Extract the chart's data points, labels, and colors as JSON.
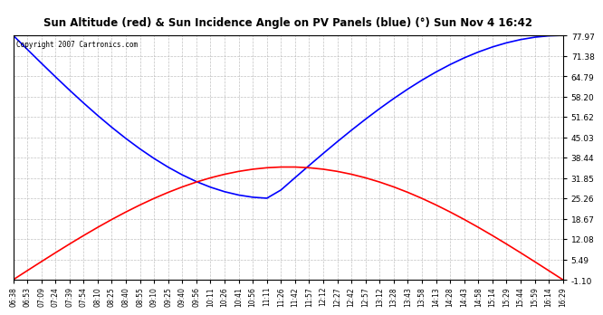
{
  "title": "Sun Altitude (red) & Sun Incidence Angle on PV Panels (blue) (°) Sun Nov 4 16:42",
  "copyright_text": "Copyright 2007 Cartronics.com",
  "y_ticks": [
    -1.1,
    5.49,
    12.08,
    18.67,
    25.26,
    31.85,
    38.44,
    45.03,
    51.62,
    58.2,
    64.79,
    71.38,
    77.97
  ],
  "y_min": -1.1,
  "y_max": 77.97,
  "x_labels": [
    "06:38",
    "06:53",
    "07:09",
    "07:24",
    "07:39",
    "07:54",
    "08:10",
    "08:25",
    "08:40",
    "08:55",
    "09:10",
    "09:25",
    "09:40",
    "09:56",
    "10:11",
    "10:26",
    "10:41",
    "10:56",
    "11:11",
    "11:26",
    "11:42",
    "11:57",
    "12:12",
    "12:27",
    "12:42",
    "12:57",
    "13:12",
    "13:28",
    "13:43",
    "13:58",
    "14:13",
    "14:28",
    "14:43",
    "14:58",
    "15:14",
    "15:29",
    "15:44",
    "15:59",
    "16:14",
    "16:29"
  ],
  "background_color": "#ffffff",
  "plot_bg_color": "#ffffff",
  "grid_color": "#aaaaaa",
  "blue_line_color": "#0000ff",
  "red_line_color": "#ff0000",
  "border_color": "#000000",
  "n_points": 40
}
